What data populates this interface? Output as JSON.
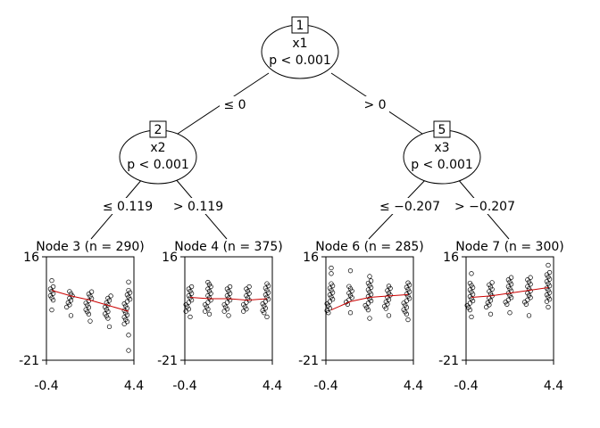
{
  "tree": {
    "inner_nodes": [
      {
        "id": "1",
        "var": "x1",
        "p": "p < 0.001"
      },
      {
        "id": "2",
        "var": "x2",
        "p": "p < 0.001"
      },
      {
        "id": "5",
        "var": "x3",
        "p": "p < 0.001"
      }
    ],
    "edges": [
      {
        "label": "≤ 0"
      },
      {
        "label": "> 0"
      },
      {
        "label": "≤ 0.119"
      },
      {
        "label": "> 0.119"
      },
      {
        "label": "≤ −0.207"
      },
      {
        "label": "> −0.207"
      }
    ],
    "leaves": [
      {
        "title": "Node 3 (n = 290)",
        "ymax": "16",
        "ymin": "-21",
        "xmin": "-0.4",
        "xmax": "4.4",
        "groups": [
          {
            "x": 0,
            "lo": 0.5,
            "hi": 6.0,
            "out": [
              7.5,
              -3.0
            ]
          },
          {
            "x": 1,
            "lo": -2.0,
            "hi": 4.0,
            "out": [
              -5.0
            ]
          },
          {
            "x": 2,
            "lo": -4.5,
            "hi": 3.5,
            "out": [
              -7.0
            ]
          },
          {
            "x": 3,
            "lo": -6.0,
            "hi": 2.0,
            "out": [
              -9.0
            ]
          },
          {
            "x": 4,
            "lo": -8.0,
            "hi": 4.5,
            "out": [
              -12.0,
              -17.5,
              7.0
            ]
          }
        ],
        "fit": [
          [
            0,
            4.0
          ],
          [
            1,
            2.0
          ],
          [
            2,
            0.5
          ],
          [
            3,
            -1.5
          ],
          [
            4,
            -3.5
          ]
        ]
      },
      {
        "title": "Node 4 (n = 375)",
        "ymax": "16",
        "ymin": "-21",
        "xmin": "-0.4",
        "xmax": "4.4",
        "groups": [
          {
            "x": 0,
            "lo": -3.5,
            "hi": 5.5,
            "out": [
              -5.5
            ]
          },
          {
            "x": 1,
            "lo": -3.5,
            "hi": 7.5,
            "out": [
              -4.5
            ]
          },
          {
            "x": 2,
            "lo": -3.5,
            "hi": 5.5,
            "out": [
              -5.0
            ]
          },
          {
            "x": 3,
            "lo": -3.5,
            "hi": 5.5,
            "out": []
          },
          {
            "x": 4,
            "lo": -4.0,
            "hi": 7.0,
            "out": [
              -5.5
            ]
          }
        ],
        "fit": [
          [
            0,
            1.5
          ],
          [
            1,
            1.0
          ],
          [
            2,
            1.0
          ],
          [
            3,
            0.5
          ],
          [
            4,
            1.0
          ]
        ]
      },
      {
        "title": "Node 6 (n = 285)",
        "ymax": "16",
        "ymin": "-21",
        "xmin": "-0.4",
        "xmax": "4.4",
        "groups": [
          {
            "x": 0,
            "lo": -4.0,
            "hi": 6.5,
            "out": [
              10.0,
              12.0
            ]
          },
          {
            "x": 1,
            "lo": -1.0,
            "hi": 6.0,
            "out": [
              11.0,
              -4.0
            ]
          },
          {
            "x": 2,
            "lo": -3.0,
            "hi": 7.5,
            "out": [
              9.0,
              -6.0
            ]
          },
          {
            "x": 3,
            "lo": -2.5,
            "hi": 6.0,
            "out": [
              -5.0
            ]
          },
          {
            "x": 4,
            "lo": -4.5,
            "hi": 7.0,
            "out": [
              -6.5
            ]
          }
        ],
        "fit": [
          [
            0,
            -3.0
          ],
          [
            1,
            0.0
          ],
          [
            2,
            1.5
          ],
          [
            3,
            2.0
          ],
          [
            4,
            2.5
          ]
        ]
      },
      {
        "title": "Node 7 (n = 300)",
        "ymax": "16",
        "ymin": "-21",
        "xmin": "-0.4",
        "xmax": "4.4",
        "groups": [
          {
            "x": 0,
            "lo": -3.0,
            "hi": 7.0,
            "out": [
              10.0,
              -5.5
            ]
          },
          {
            "x": 1,
            "lo": -2.0,
            "hi": 7.5,
            "out": [
              -4.5
            ]
          },
          {
            "x": 2,
            "lo": -1.0,
            "hi": 9.0,
            "out": [
              -4.0
            ]
          },
          {
            "x": 3,
            "lo": -1.0,
            "hi": 9.0,
            "out": [
              -5.0
            ]
          },
          {
            "x": 4,
            "lo": 0.0,
            "hi": 11.0,
            "out": [
              13.0,
              -2.0
            ]
          }
        ],
        "fit": [
          [
            0,
            1.5
          ],
          [
            1,
            2.0
          ],
          [
            2,
            3.0
          ],
          [
            3,
            4.0
          ],
          [
            4,
            5.0
          ]
        ]
      }
    ]
  }
}
